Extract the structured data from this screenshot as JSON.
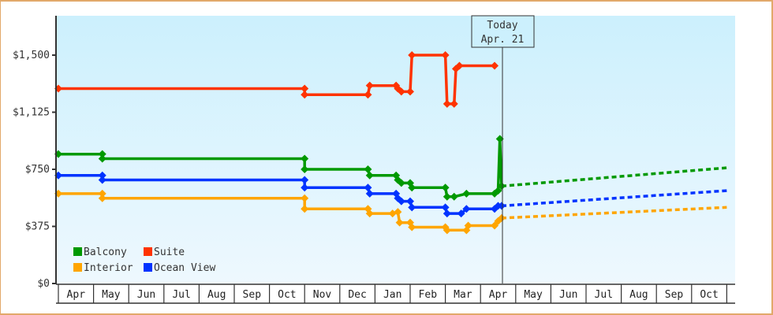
{
  "chart_data": {
    "type": "line",
    "title": "",
    "xlabel": "",
    "ylabel": "",
    "ylim": [
      0,
      1750
    ],
    "y_ticks": [
      {
        "value": 0,
        "label": "$0"
      },
      {
        "value": 375,
        "label": "$375"
      },
      {
        "value": 750,
        "label": "$750"
      },
      {
        "value": 1125,
        "label": "$1,125"
      },
      {
        "value": 1500,
        "label": "$1,500"
      }
    ],
    "x_ticks": [
      "Apr",
      "May",
      "Jun",
      "Jul",
      "Aug",
      "Sep",
      "Oct",
      "Nov",
      "Dec",
      "Jan",
      "Feb",
      "Mar",
      "Apr",
      "May",
      "Jun",
      "Jul",
      "Aug",
      "Sep",
      "Oct"
    ],
    "grid": false,
    "legend_position": "lower-left",
    "today_marker": {
      "line1": "Today",
      "line2": "Apr. 21",
      "month_index": 12.5
    },
    "series": [
      {
        "name": "Suite",
        "color": "#ff3300",
        "points": [
          [
            0,
            1280
          ],
          [
            7.0,
            1280
          ],
          [
            7.0,
            1240
          ],
          [
            8.8,
            1240
          ],
          [
            8.85,
            1300
          ],
          [
            9.6,
            1300
          ],
          [
            9.65,
            1280
          ],
          [
            9.75,
            1260
          ],
          [
            9.85,
            1260
          ],
          [
            10.0,
            1260
          ],
          [
            10.05,
            1500
          ],
          [
            11.0,
            1500
          ],
          [
            11.05,
            1180
          ],
          [
            11.25,
            1180
          ],
          [
            11.3,
            1410
          ],
          [
            11.4,
            1430
          ],
          [
            12.4,
            1430
          ]
        ],
        "forecast": []
      },
      {
        "name": "Balcony",
        "color": "#009900",
        "points": [
          [
            0,
            850
          ],
          [
            1.25,
            850
          ],
          [
            1.25,
            820
          ],
          [
            7.0,
            820
          ],
          [
            7.0,
            750
          ],
          [
            8.8,
            750
          ],
          [
            8.85,
            710
          ],
          [
            9.6,
            710
          ],
          [
            9.65,
            680
          ],
          [
            9.75,
            660
          ],
          [
            9.85,
            660
          ],
          [
            10.0,
            660
          ],
          [
            10.05,
            630
          ],
          [
            11.0,
            630
          ],
          [
            11.05,
            570
          ],
          [
            11.25,
            570
          ],
          [
            11.6,
            590
          ],
          [
            12.4,
            590
          ],
          [
            12.5,
            610
          ],
          [
            12.55,
            950
          ],
          [
            12.6,
            640
          ]
        ],
        "forecast": [
          [
            12.6,
            640
          ],
          [
            19.0,
            760
          ]
        ]
      },
      {
        "name": "Ocean View",
        "color": "#0033ff",
        "points": [
          [
            0,
            710
          ],
          [
            1.25,
            710
          ],
          [
            1.25,
            680
          ],
          [
            7.0,
            680
          ],
          [
            7.0,
            630
          ],
          [
            8.8,
            630
          ],
          [
            8.85,
            590
          ],
          [
            9.6,
            590
          ],
          [
            9.65,
            560
          ],
          [
            9.75,
            540
          ],
          [
            9.85,
            540
          ],
          [
            10.0,
            540
          ],
          [
            10.05,
            500
          ],
          [
            11.0,
            500
          ],
          [
            11.05,
            460
          ],
          [
            11.25,
            460
          ],
          [
            11.45,
            460
          ],
          [
            11.6,
            490
          ],
          [
            12.4,
            490
          ],
          [
            12.5,
            510
          ],
          [
            12.6,
            510
          ]
        ],
        "forecast": [
          [
            12.6,
            510
          ],
          [
            19.0,
            610
          ]
        ]
      },
      {
        "name": "Interior",
        "color": "#ffa500",
        "points": [
          [
            0,
            590
          ],
          [
            1.25,
            590
          ],
          [
            1.25,
            560
          ],
          [
            7.0,
            560
          ],
          [
            7.0,
            490
          ],
          [
            8.8,
            490
          ],
          [
            8.85,
            460
          ],
          [
            9.5,
            460
          ],
          [
            9.65,
            470
          ],
          [
            9.7,
            400
          ],
          [
            9.85,
            400
          ],
          [
            10.0,
            400
          ],
          [
            10.05,
            370
          ],
          [
            11.0,
            370
          ],
          [
            11.05,
            350
          ],
          [
            11.6,
            350
          ],
          [
            11.65,
            380
          ],
          [
            12.4,
            380
          ],
          [
            12.5,
            410
          ],
          [
            12.6,
            430
          ]
        ],
        "forecast": [
          [
            12.6,
            430
          ],
          [
            19.0,
            500
          ]
        ]
      }
    ],
    "legend": [
      {
        "label": "Balcony",
        "color": "#009900"
      },
      {
        "label": "Suite",
        "color": "#ff3300"
      },
      {
        "label": "Interior",
        "color": "#ffa500"
      },
      {
        "label": "Ocean View",
        "color": "#0033ff"
      }
    ]
  }
}
